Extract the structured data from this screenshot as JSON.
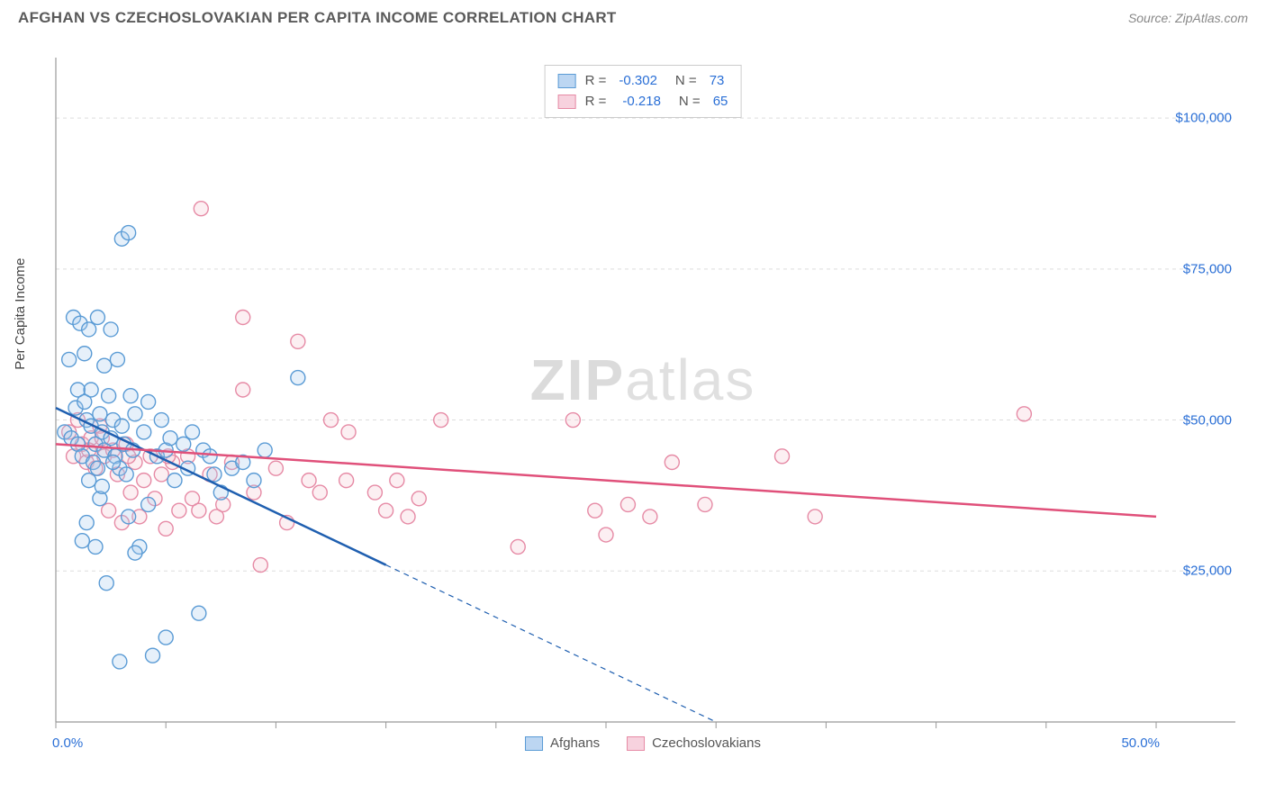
{
  "header": {
    "title": "AFGHAN VS CZECHOSLOVAKIAN PER CAPITA INCOME CORRELATION CHART",
    "source": "Source: ZipAtlas.com"
  },
  "watermark": {
    "zip": "ZIP",
    "atlas": "atlas"
  },
  "chart": {
    "type": "scatter",
    "ylabel": "Per Capita Income",
    "background_color": "#ffffff",
    "grid_color": "#dddddd",
    "axis_color": "#999999",
    "tick_color": "#999999",
    "xlim": [
      0,
      50
    ],
    "ylim": [
      0,
      110000
    ],
    "x_tick_step": 5,
    "x_tick_labels": {
      "0": "0.0%",
      "50": "50.0%"
    },
    "y_gridlines": [
      25000,
      50000,
      75000,
      100000
    ],
    "y_tick_labels": {
      "25000": "$25,000",
      "50000": "$50,000",
      "75000": "$75,000",
      "100000": "$100,000"
    },
    "marker_radius": 8,
    "marker_stroke_width": 1.4,
    "marker_fill_opacity": 0.28,
    "trend_line_width": 2.5,
    "trend_dash_pattern": "6 5",
    "label_color": "#555555",
    "value_color": "#2a6fd6",
    "label_fontsize": 15,
    "title_fontsize": 17,
    "title_color": "#5a5a5a",
    "source_color": "#888888"
  },
  "series": {
    "a": {
      "name": "Afghans",
      "color_stroke": "#5a9bd5",
      "color_fill": "#a7c9ec",
      "swatch_border": "#5a9bd5",
      "swatch_fill": "#bcd6f2",
      "trend_color": "#1f5fb0",
      "R": "-0.302",
      "N": "73",
      "trend": {
        "x1": 0,
        "y1": 52000,
        "solid_until_x": 15,
        "x2": 30,
        "y2": 0
      },
      "points": [
        [
          0.4,
          48000
        ],
        [
          0.6,
          60000
        ],
        [
          0.7,
          47000
        ],
        [
          0.8,
          67000
        ],
        [
          0.9,
          52000
        ],
        [
          1.0,
          55000
        ],
        [
          1.0,
          46000
        ],
        [
          1.1,
          66000
        ],
        [
          1.2,
          30000
        ],
        [
          1.2,
          44000
        ],
        [
          1.3,
          61000
        ],
        [
          1.3,
          53000
        ],
        [
          1.4,
          50000
        ],
        [
          1.5,
          65000
        ],
        [
          1.5,
          40000
        ],
        [
          1.6,
          49000
        ],
        [
          1.6,
          55000
        ],
        [
          1.7,
          43000
        ],
        [
          1.8,
          29000
        ],
        [
          1.8,
          46000
        ],
        [
          1.9,
          67000
        ],
        [
          2.0,
          51000
        ],
        [
          2.0,
          37000
        ],
        [
          2.1,
          48000
        ],
        [
          2.2,
          59000
        ],
        [
          2.2,
          45000
        ],
        [
          2.3,
          23000
        ],
        [
          2.4,
          54000
        ],
        [
          2.5,
          47000
        ],
        [
          2.5,
          65000
        ],
        [
          2.6,
          50000
        ],
        [
          2.7,
          44000
        ],
        [
          2.8,
          60000
        ],
        [
          2.9,
          42000
        ],
        [
          3.0,
          49000
        ],
        [
          3.0,
          80000
        ],
        [
          3.1,
          46000
        ],
        [
          3.3,
          81000
        ],
        [
          3.3,
          34000
        ],
        [
          3.4,
          54000
        ],
        [
          3.5,
          45000
        ],
        [
          3.6,
          51000
        ],
        [
          3.8,
          29000
        ],
        [
          4.0,
          48000
        ],
        [
          4.2,
          53000
        ],
        [
          4.4,
          11000
        ],
        [
          4.6,
          44000
        ],
        [
          4.8,
          50000
        ],
        [
          5.0,
          14000
        ],
        [
          5.0,
          45000
        ],
        [
          5.2,
          47000
        ],
        [
          5.4,
          40000
        ],
        [
          5.8,
          46000
        ],
        [
          6.0,
          42000
        ],
        [
          6.2,
          48000
        ],
        [
          6.5,
          18000
        ],
        [
          6.7,
          45000
        ],
        [
          7.0,
          44000
        ],
        [
          7.2,
          41000
        ],
        [
          7.5,
          38000
        ],
        [
          8.0,
          42000
        ],
        [
          8.5,
          43000
        ],
        [
          9.0,
          40000
        ],
        [
          9.5,
          45000
        ],
        [
          11.0,
          57000
        ],
        [
          2.9,
          10000
        ],
        [
          3.6,
          28000
        ],
        [
          4.2,
          36000
        ],
        [
          1.4,
          33000
        ],
        [
          1.9,
          42000
        ],
        [
          2.1,
          39000
        ],
        [
          2.6,
          43000
        ],
        [
          3.2,
          41000
        ]
      ]
    },
    "b": {
      "name": "Czechoslovakians",
      "color_stroke": "#e68aa5",
      "color_fill": "#f5c4d2",
      "swatch_border": "#e68aa5",
      "swatch_fill": "#f7d2de",
      "trend_color": "#e0507a",
      "R": "-0.218",
      "N": "65",
      "trend": {
        "x1": 0,
        "y1": 46000,
        "solid_until_x": 50,
        "x2": 50,
        "y2": 34000
      },
      "points": [
        [
          0.6,
          48000
        ],
        [
          0.8,
          44000
        ],
        [
          1.0,
          50000
        ],
        [
          1.2,
          46000
        ],
        [
          1.4,
          43000
        ],
        [
          1.6,
          47000
        ],
        [
          1.8,
          42000
        ],
        [
          2.0,
          49000
        ],
        [
          2.2,
          44000
        ],
        [
          2.4,
          35000
        ],
        [
          2.6,
          45000
        ],
        [
          2.8,
          41000
        ],
        [
          3.0,
          33000
        ],
        [
          3.2,
          46000
        ],
        [
          3.4,
          38000
        ],
        [
          3.6,
          43000
        ],
        [
          3.8,
          34000
        ],
        [
          4.0,
          40000
        ],
        [
          4.3,
          44000
        ],
        [
          4.5,
          37000
        ],
        [
          4.8,
          41000
        ],
        [
          5.0,
          32000
        ],
        [
          5.3,
          43000
        ],
        [
          5.6,
          35000
        ],
        [
          6.0,
          44000
        ],
        [
          6.2,
          37000
        ],
        [
          6.5,
          35000
        ],
        [
          6.6,
          85000
        ],
        [
          7.0,
          41000
        ],
        [
          7.3,
          34000
        ],
        [
          7.6,
          36000
        ],
        [
          8.0,
          43000
        ],
        [
          8.5,
          67000
        ],
        [
          8.5,
          55000
        ],
        [
          9.0,
          38000
        ],
        [
          9.3,
          26000
        ],
        [
          10.0,
          42000
        ],
        [
          10.5,
          33000
        ],
        [
          11.0,
          63000
        ],
        [
          11.5,
          40000
        ],
        [
          12.0,
          38000
        ],
        [
          12.5,
          50000
        ],
        [
          13.2,
          40000
        ],
        [
          13.3,
          48000
        ],
        [
          14.5,
          38000
        ],
        [
          15.0,
          35000
        ],
        [
          15.5,
          40000
        ],
        [
          16.0,
          34000
        ],
        [
          16.5,
          37000
        ],
        [
          17.5,
          50000
        ],
        [
          21.0,
          29000
        ],
        [
          23.5,
          50000
        ],
        [
          24.5,
          35000
        ],
        [
          25.0,
          31000
        ],
        [
          26.0,
          36000
        ],
        [
          27.0,
          34000
        ],
        [
          28.0,
          43000
        ],
        [
          29.5,
          36000
        ],
        [
          33.0,
          44000
        ],
        [
          34.5,
          34000
        ],
        [
          44.0,
          51000
        ],
        [
          1.5,
          45000
        ],
        [
          2.1,
          47000
        ],
        [
          3.3,
          44000
        ],
        [
          5.1,
          44000
        ]
      ]
    }
  },
  "legend_top": {
    "r_label": "R =",
    "n_label": "N ="
  }
}
